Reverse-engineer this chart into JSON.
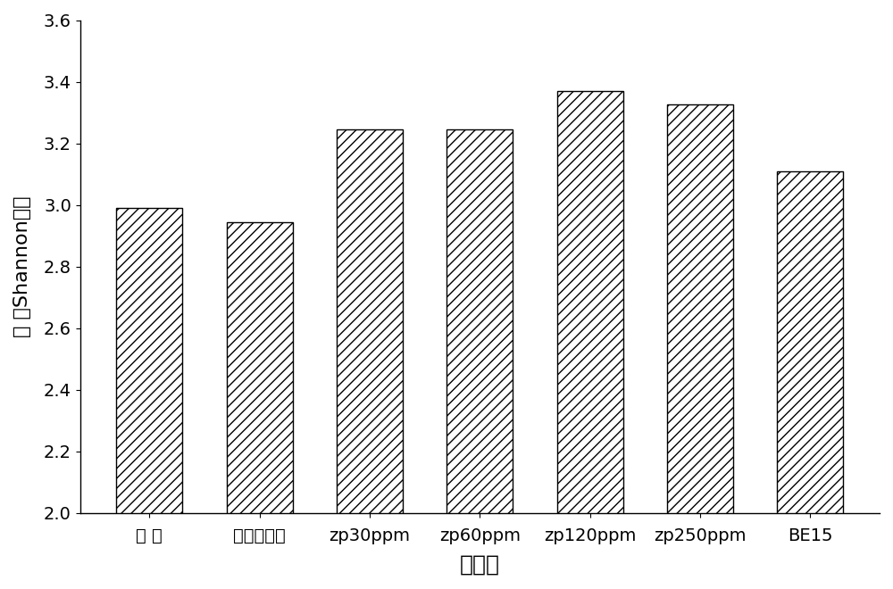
{
  "categories": [
    "背 景",
    "促生剂空白",
    "zp30ppm",
    "zp60ppm",
    "zp120ppm",
    "zp250ppm",
    "BE15"
  ],
  "values": [
    2.99,
    2.945,
    3.245,
    3.245,
    3.37,
    3.325,
    3.11
  ],
  "xlabel": "实验组",
  "ylabel": "底 泥Shannon指数",
  "ylim": [
    2.0,
    3.6
  ],
  "yticks": [
    2.0,
    2.2,
    2.4,
    2.6,
    2.8,
    3.0,
    3.2,
    3.4,
    3.6
  ],
  "bar_color": "#ffffff",
  "bar_edgecolor": "#000000",
  "hatch": "///",
  "bar_width": 0.6,
  "figsize": [
    10.0,
    6.6
  ],
  "dpi": 100,
  "xlabel_fontsize": 18,
  "ylabel_fontsize": 16,
  "tick_fontsize": 14
}
